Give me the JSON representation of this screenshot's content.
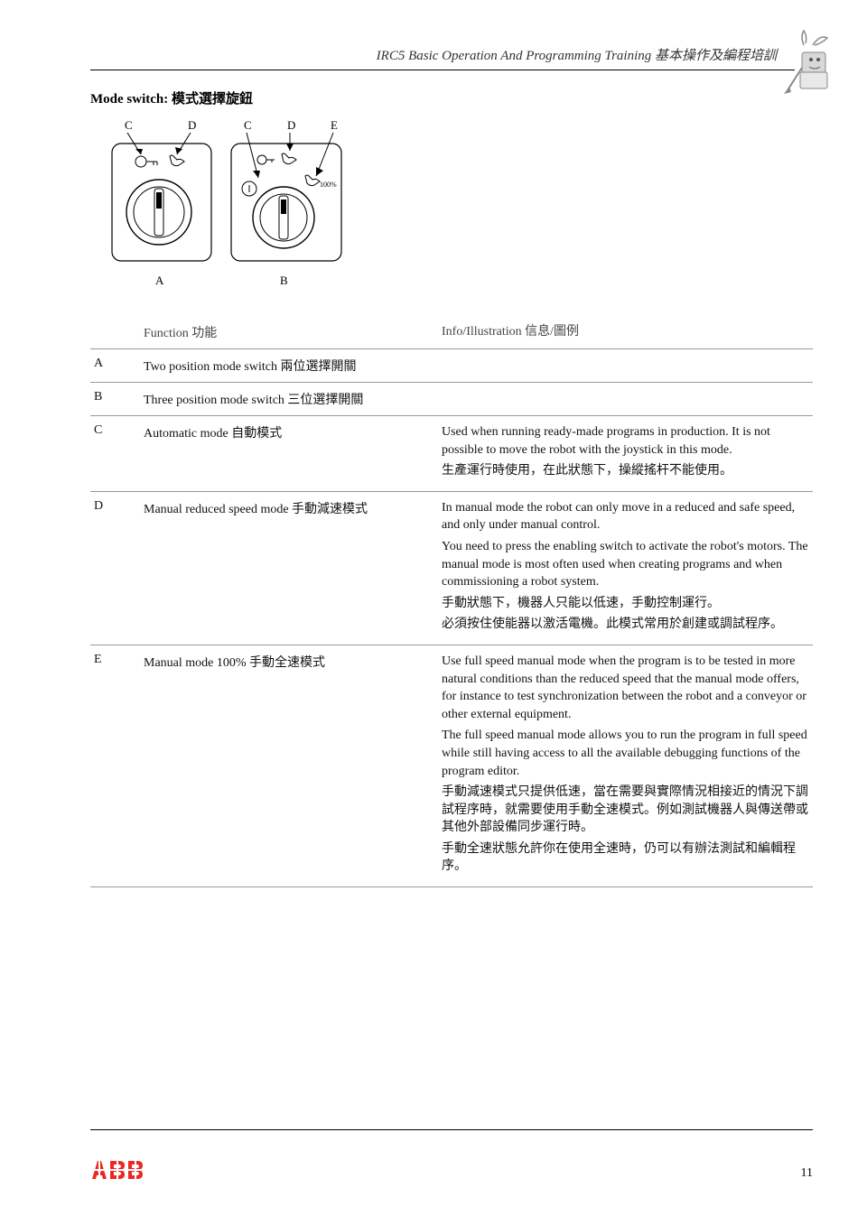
{
  "header": {
    "title": "IRC5 Basic Operation And Programming Training 基本操作及編程培訓"
  },
  "section": {
    "title": "Mode switch: 模式選擇旋鈕"
  },
  "diagram": {
    "labels": {
      "c": "C",
      "d": "D",
      "e": "E",
      "a": "A",
      "b": "B"
    },
    "pct": "100%",
    "colors": {
      "stroke": "#000000",
      "bg": "#ffffff",
      "arrow": "#000000"
    }
  },
  "table": {
    "headers": {
      "id": "",
      "function": "Function 功能",
      "info": "Info/Illustration 信息/圖例"
    },
    "rows": [
      {
        "id": "A",
        "func": "Two position mode switch  兩位選擇開關",
        "info": []
      },
      {
        "id": "B",
        "func": "Three position mode switch  三位選擇開關",
        "info": []
      },
      {
        "id": "C",
        "func": "Automatic mode  自動模式",
        "info": [
          "Used when running ready-made programs in production. It is not possible to move the robot with the joystick in this mode.",
          "生產運行時使用，在此狀態下，操縱搖杆不能使用。"
        ]
      },
      {
        "id": "D",
        "func": "Manual reduced speed mode  手動減速模式",
        "info": [
          "In manual mode the robot can only move in a reduced and safe speed, and only under manual control.",
          "You need to press the enabling switch to activate the robot's motors. The manual mode is most often used when creating programs and when commissioning a robot system.",
          "手動狀態下，機器人只能以低速，手動控制運行。",
          "必須按住使能器以激活電機。此模式常用於創建或調試程序。"
        ]
      },
      {
        "id": "E",
        "func": "Manual mode 100%  手動全速模式",
        "info": [
          "Use full speed manual mode when the program is to be tested in more natural conditions than the reduced speed that the manual mode offers, for instance to test synchronization between the robot and a conveyor or other external equipment.",
          "The full speed manual mode allows you to run the program in full speed while still having access to all the available debugging functions of the program editor.",
          "手動減速模式只提供低速，當在需要與實際情況相接近的情況下調試程序時，就需要使用手動全速模式。例如測試機器人與傳送帶或其他外部設備同步運行時。",
          "手動全速狀態允許你在使用全速時，仍可以有辦法測試和編輯程序。"
        ]
      }
    ]
  },
  "footer": {
    "logo_color": "#ee2722",
    "page": "11"
  }
}
